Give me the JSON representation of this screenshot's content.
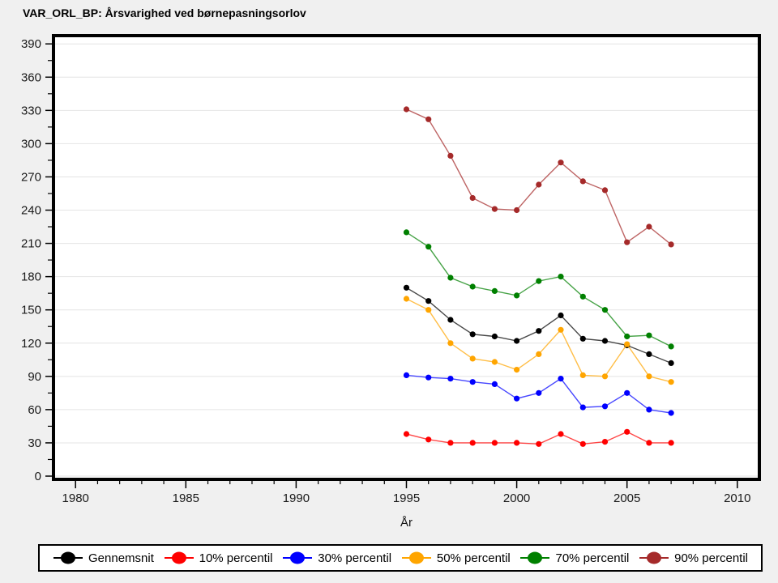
{
  "window": {
    "background": "#f0f0f0",
    "plot_background": "#ffffff",
    "grid_color": "#e4e4e4",
    "frame_color": "#000000"
  },
  "chart_data": {
    "type": "line",
    "title": "VAR_ORL_BP: Årsvarighed ved børnepasningsorlov",
    "xlabel": "År",
    "ylabel": "",
    "x": [
      1995,
      1996,
      1997,
      1998,
      1999,
      2000,
      2001,
      2002,
      2003,
      2004,
      2005,
      2006,
      2007
    ],
    "series": [
      {
        "name": "Gennemsnit",
        "color": "#000000",
        "values": [
          170,
          158,
          141,
          128,
          126,
          122,
          131,
          145,
          124,
          122,
          118,
          110,
          102
        ]
      },
      {
        "name": "10% percentil",
        "color": "#ff0000",
        "values": [
          38,
          33,
          30,
          30,
          30,
          30,
          29,
          38,
          29,
          31,
          40,
          30,
          30
        ]
      },
      {
        "name": "30% percentil",
        "color": "#0000ff",
        "values": [
          91,
          89,
          88,
          85,
          83,
          70,
          75,
          88,
          62,
          63,
          75,
          60,
          57
        ]
      },
      {
        "name": "50% percentil",
        "color": "#ffa500",
        "values": [
          160,
          150,
          120,
          106,
          103,
          96,
          110,
          132,
          91,
          90,
          119,
          90,
          85
        ]
      },
      {
        "name": "70% percentil",
        "color": "#008000",
        "values": [
          220,
          207,
          179,
          171,
          167,
          163,
          176,
          180,
          162,
          150,
          126,
          127,
          117
        ]
      },
      {
        "name": "90% percentil",
        "color": "#a52a2a",
        "values": [
          331,
          322,
          289,
          251,
          241,
          240,
          263,
          283,
          266,
          258,
          211,
          225,
          209
        ]
      }
    ],
    "xlim": [
      1979,
      2011
    ],
    "ylim": [
      0,
      396
    ],
    "x_ticks_major": [
      1980,
      1985,
      1990,
      1995,
      2000,
      2005,
      2010
    ],
    "x_tick_minor_step": 1,
    "y_ticks": [
      0,
      30,
      60,
      90,
      120,
      150,
      180,
      210,
      240,
      270,
      300,
      330,
      360,
      390
    ],
    "y_tick_minor_offset": 15,
    "grid": "horizontal",
    "legend_position": "bottom"
  }
}
